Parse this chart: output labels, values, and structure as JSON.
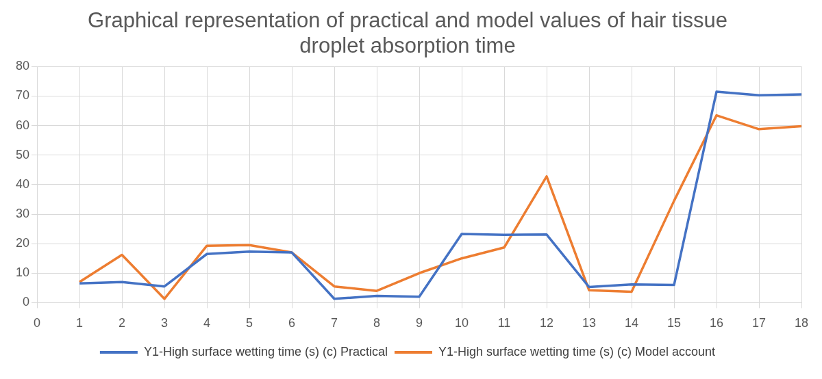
{
  "chart_data": {
    "type": "line",
    "title": "Graphical representation of practical and model values of hair tissue droplet absorption time",
    "x": [
      1,
      2,
      3,
      4,
      5,
      6,
      7,
      8,
      9,
      10,
      11,
      12,
      13,
      14,
      15,
      16,
      17,
      18
    ],
    "series": [
      {
        "name": "Y1-High surface wetting time (s) (c) Practical",
        "color": "#4472c4",
        "values": [
          6.5,
          7,
          5.5,
          16.5,
          17.3,
          17,
          1.3,
          2.3,
          2,
          23.3,
          23,
          23.1,
          5.3,
          6.2,
          6,
          71.5,
          70.3,
          70.6
        ]
      },
      {
        "name": "Y1-High surface wetting time (s) (c) Model account",
        "color": "#ed7d31",
        "values": [
          7,
          16.2,
          1.3,
          19.3,
          19.5,
          17,
          5.5,
          4,
          10,
          15,
          18.7,
          42.8,
          4.2,
          3.7,
          34.5,
          63.5,
          58.8,
          59.8
        ]
      }
    ],
    "xlim": [
      0,
      18
    ],
    "xticks": [
      0,
      1,
      2,
      3,
      4,
      5,
      6,
      7,
      8,
      9,
      10,
      11,
      12,
      13,
      14,
      15,
      16,
      17,
      18
    ],
    "ylim": [
      0,
      80
    ],
    "yticks": [
      0,
      10,
      20,
      30,
      40,
      50,
      60,
      70,
      80
    ],
    "grid": true,
    "legend": "bottom",
    "marker": "none",
    "line_style": "solid"
  }
}
